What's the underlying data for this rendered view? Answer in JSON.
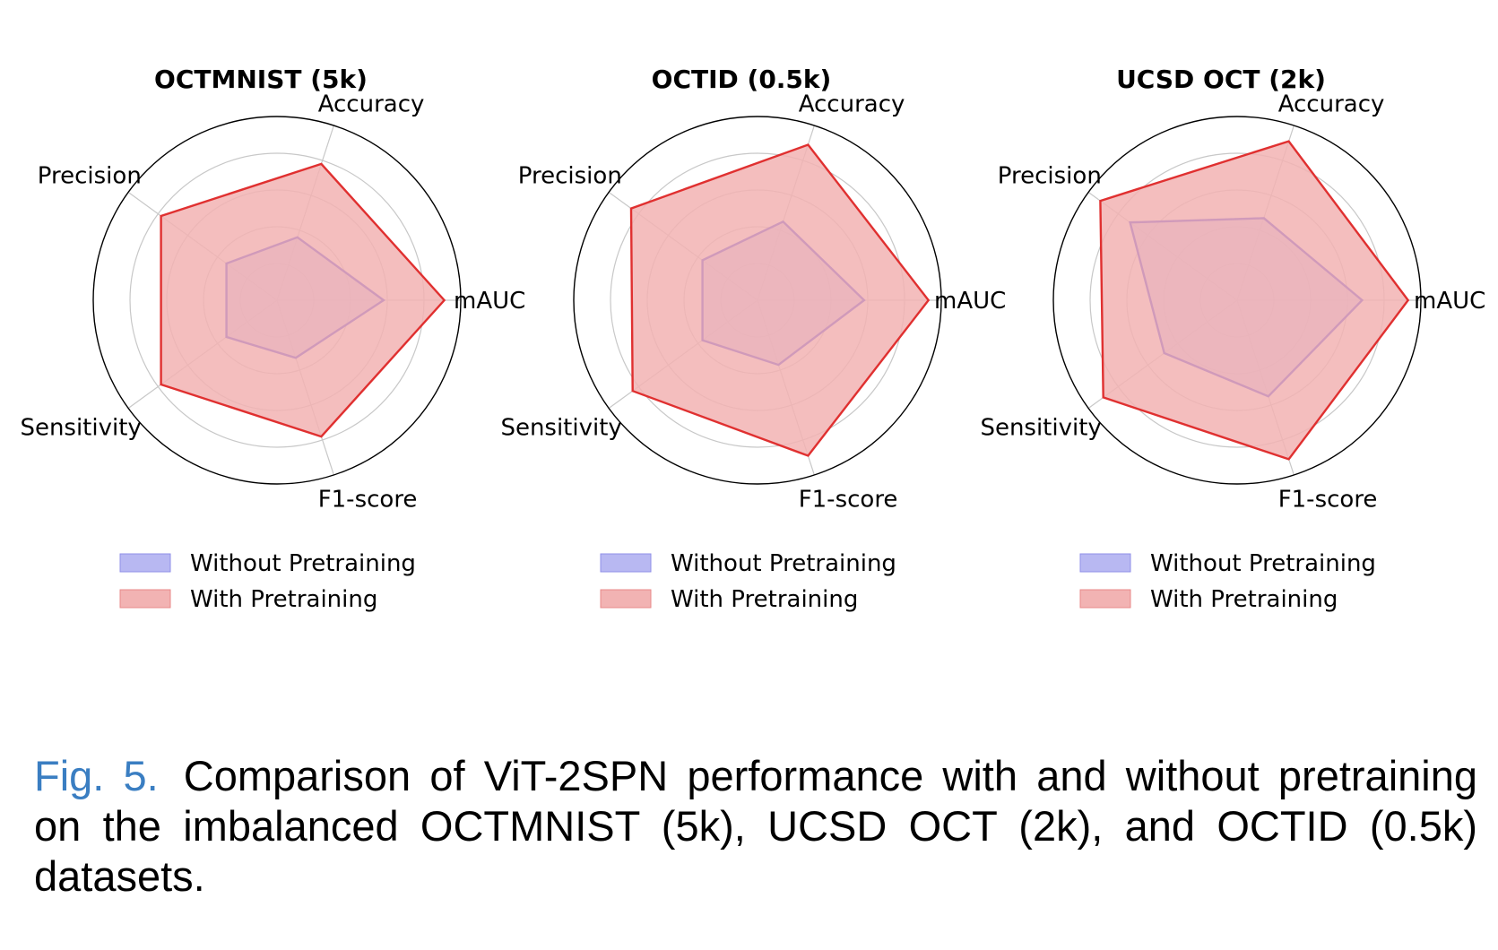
{
  "figure": {
    "label": "Fig. 5.",
    "caption": "Comparison of ViT-2SPN performance with and without pretraining on the imbalanced OCTMNIST (5k), UCSD OCT (2k), and OCTID (0.5k) datasets."
  },
  "colors": {
    "without_fill": "#b8b8f2",
    "without_line": "#1010e0",
    "with_fill": "#f2b3b3",
    "with_line": "#e03030",
    "grid": "#c8c8c8",
    "frame": "#000000"
  },
  "chart_data": [
    {
      "type": "radar",
      "title": "OCTMNIST (5k)",
      "axes": [
        "Accuracy",
        "Precision",
        "Sensitivity",
        "F1-score",
        "mAUC"
      ],
      "rmax": 1.0,
      "grid_rings": [
        0.2,
        0.4,
        0.6,
        0.8
      ],
      "series": [
        {
          "name": "Without Pretraining",
          "values": [
            0.36,
            0.34,
            0.34,
            0.33,
            0.58
          ]
        },
        {
          "name": "With Pretraining",
          "values": [
            0.78,
            0.78,
            0.78,
            0.78,
            0.91
          ]
        }
      ],
      "legend": [
        "Without Pretraining",
        "With Pretraining"
      ],
      "legend_position": "bottom"
    },
    {
      "type": "radar",
      "title": "OCTID (0.5k)",
      "axes": [
        "Accuracy",
        "Precision",
        "Sensitivity",
        "F1-score",
        "mAUC"
      ],
      "rmax": 1.0,
      "grid_rings": [
        0.2,
        0.4,
        0.6,
        0.8
      ],
      "series": [
        {
          "name": "Without Pretraining",
          "values": [
            0.45,
            0.37,
            0.37,
            0.37,
            0.58
          ]
        },
        {
          "name": "With Pretraining",
          "values": [
            0.89,
            0.85,
            0.84,
            0.89,
            0.93
          ]
        }
      ],
      "legend": [
        "Without Pretraining",
        "With Pretraining"
      ],
      "legend_position": "bottom"
    },
    {
      "type": "radar",
      "title": "UCSD OCT (2k)",
      "axes": [
        "Accuracy",
        "Precision",
        "Sensitivity",
        "F1-score",
        "mAUC"
      ],
      "rmax": 1.0,
      "grid_rings": [
        0.2,
        0.4,
        0.6,
        0.8
      ],
      "series": [
        {
          "name": "Without Pretraining",
          "values": [
            0.47,
            0.72,
            0.49,
            0.55,
            0.68
          ]
        },
        {
          "name": "With Pretraining",
          "values": [
            0.91,
            0.92,
            0.9,
            0.91,
            0.93
          ]
        }
      ],
      "legend": [
        "Without Pretraining",
        "With Pretraining"
      ],
      "legend_position": "bottom"
    }
  ]
}
